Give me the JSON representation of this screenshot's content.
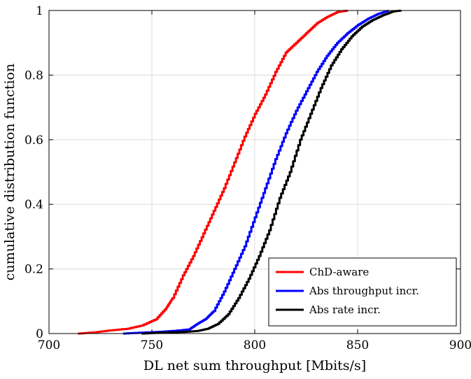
{
  "chart_data": {
    "type": "line",
    "title": "",
    "xlabel": "DL net sum throughput [Mbits/s]",
    "ylabel": "cumulative distribution function",
    "xlim": [
      700,
      900
    ],
    "ylim": [
      0,
      1
    ],
    "xticks": [
      700,
      750,
      800,
      850,
      900
    ],
    "yticks": [
      0,
      0.2,
      0.4,
      0.6,
      0.8,
      1
    ],
    "xtick_labels": [
      "700",
      "750",
      "800",
      "850",
      "900"
    ],
    "ytick_labels": [
      "0",
      "0.2",
      "0.4",
      "0.6",
      "0.8",
      "1"
    ],
    "grid": true,
    "legend_position": "bottom-right",
    "series": [
      {
        "name": "ChD-aware",
        "color": "#ff0000",
        "x": [
          714,
          722,
          730,
          738,
          745,
          752,
          757,
          760,
          765,
          770,
          775,
          780,
          785,
          790,
          795,
          800,
          805,
          810,
          815,
          820,
          825,
          830,
          835,
          840,
          845
        ],
        "y": [
          0,
          0.004,
          0.01,
          0.015,
          0.025,
          0.045,
          0.08,
          0.11,
          0.18,
          0.24,
          0.31,
          0.38,
          0.45,
          0.53,
          0.61,
          0.68,
          0.74,
          0.81,
          0.87,
          0.9,
          0.93,
          0.96,
          0.98,
          0.995,
          1.0
        ]
      },
      {
        "name": "Abs throughput incr.",
        "color": "#0000ff",
        "x": [
          736,
          745,
          755,
          762,
          768,
          772,
          776,
          780,
          785,
          790,
          795,
          800,
          805,
          810,
          815,
          820,
          825,
          830,
          835,
          840,
          845,
          850,
          855,
          860,
          865
        ],
        "y": [
          0,
          0.003,
          0.006,
          0.009,
          0.013,
          0.03,
          0.045,
          0.07,
          0.13,
          0.2,
          0.27,
          0.36,
          0.45,
          0.54,
          0.62,
          0.69,
          0.75,
          0.81,
          0.86,
          0.9,
          0.93,
          0.955,
          0.975,
          0.99,
          1.0
        ]
      },
      {
        "name": "Abs rate incr.",
        "color": "#000000",
        "x": [
          745,
          755,
          765,
          772,
          777,
          782,
          787,
          792,
          797,
          802,
          807,
          812,
          817,
          822,
          827,
          832,
          837,
          842,
          847,
          852,
          857,
          862,
          867,
          871
        ],
        "y": [
          0,
          0.003,
          0.005,
          0.008,
          0.015,
          0.03,
          0.06,
          0.11,
          0.17,
          0.24,
          0.32,
          0.42,
          0.5,
          0.6,
          0.68,
          0.76,
          0.83,
          0.88,
          0.92,
          0.95,
          0.97,
          0.985,
          0.997,
          1.0
        ]
      }
    ]
  }
}
